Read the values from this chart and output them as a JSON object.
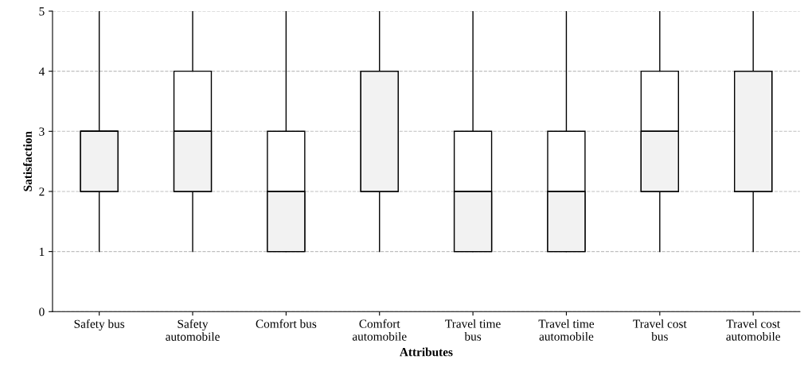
{
  "chart_data": {
    "type": "box",
    "xlabel": "Attributes",
    "ylabel": "Satisfaction",
    "categories": [
      "Safety bus",
      "Safety\nautomobile",
      "Comfort bus",
      "Comfort\nautomobile",
      "Travel time\nbus",
      "Travel time\nautomobile",
      "Travel cost\nbus",
      "Travel cost\nautomobile"
    ],
    "ylim": [
      0,
      5
    ],
    "yticks": [
      0,
      1,
      2,
      3,
      4,
      5
    ],
    "grid": "y",
    "series": [
      {
        "color": "#f2f2f2",
        "boxes": [
          {
            "low": 1,
            "q1": 2,
            "median": 3,
            "q3": 3,
            "high": 5
          },
          {
            "low": 1,
            "q1": 2,
            "median": 3,
            "q3": 4,
            "high": 5
          },
          {
            "low": 1,
            "q1": 1,
            "median": 2,
            "q3": 3,
            "high": 5
          },
          {
            "low": 1,
            "q1": 2,
            "median": 4,
            "q3": 4,
            "high": 5
          },
          {
            "low": 1,
            "q1": 1,
            "median": 2,
            "q3": 3,
            "high": 5
          },
          {
            "low": 1,
            "q1": 1,
            "median": 2,
            "q3": 3,
            "high": 5
          },
          {
            "low": 1,
            "q1": 2,
            "median": 3,
            "q3": 4,
            "high": 5
          },
          {
            "low": 1,
            "q1": 2,
            "median": 4,
            "q3": 4,
            "high": 5
          }
        ]
      }
    ]
  }
}
